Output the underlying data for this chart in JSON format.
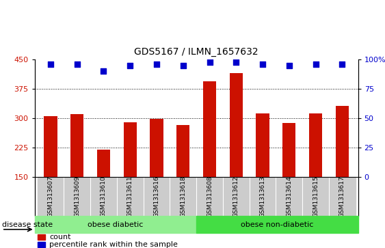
{
  "title": "GDS5167 / ILMN_1657632",
  "samples": [
    "GSM1313607",
    "GSM1313609",
    "GSM1313610",
    "GSM1313611",
    "GSM1313616",
    "GSM1313618",
    "GSM1313608",
    "GSM1313612",
    "GSM1313613",
    "GSM1313614",
    "GSM1313615",
    "GSM1313617"
  ],
  "counts": [
    305,
    310,
    220,
    290,
    298,
    282,
    395,
    415,
    312,
    287,
    312,
    332
  ],
  "percentile_ranks": [
    96,
    96,
    90,
    95,
    96,
    95,
    98,
    98,
    96,
    95,
    96,
    96
  ],
  "bar_color": "#cc1100",
  "dot_color": "#0000cc",
  "ylim_left": [
    150,
    450
  ],
  "yticks_left": [
    150,
    225,
    300,
    375,
    450
  ],
  "ylim_right": [
    0,
    100
  ],
  "yticks_right": [
    0,
    25,
    50,
    75,
    100
  ],
  "group1_label": "obese diabetic",
  "group2_label": "obese non-diabetic",
  "group1_count": 6,
  "group2_count": 6,
  "disease_state_label": "disease state",
  "group1_color": "#90ee90",
  "group2_color": "#44dd44",
  "bar_color_red": "#cc1100",
  "dot_color_blue": "#0000cc",
  "tick_area_color": "#cccccc",
  "legend_count_label": "count",
  "legend_percentile_label": "percentile rank within the sample",
  "background_color": "#ffffff"
}
